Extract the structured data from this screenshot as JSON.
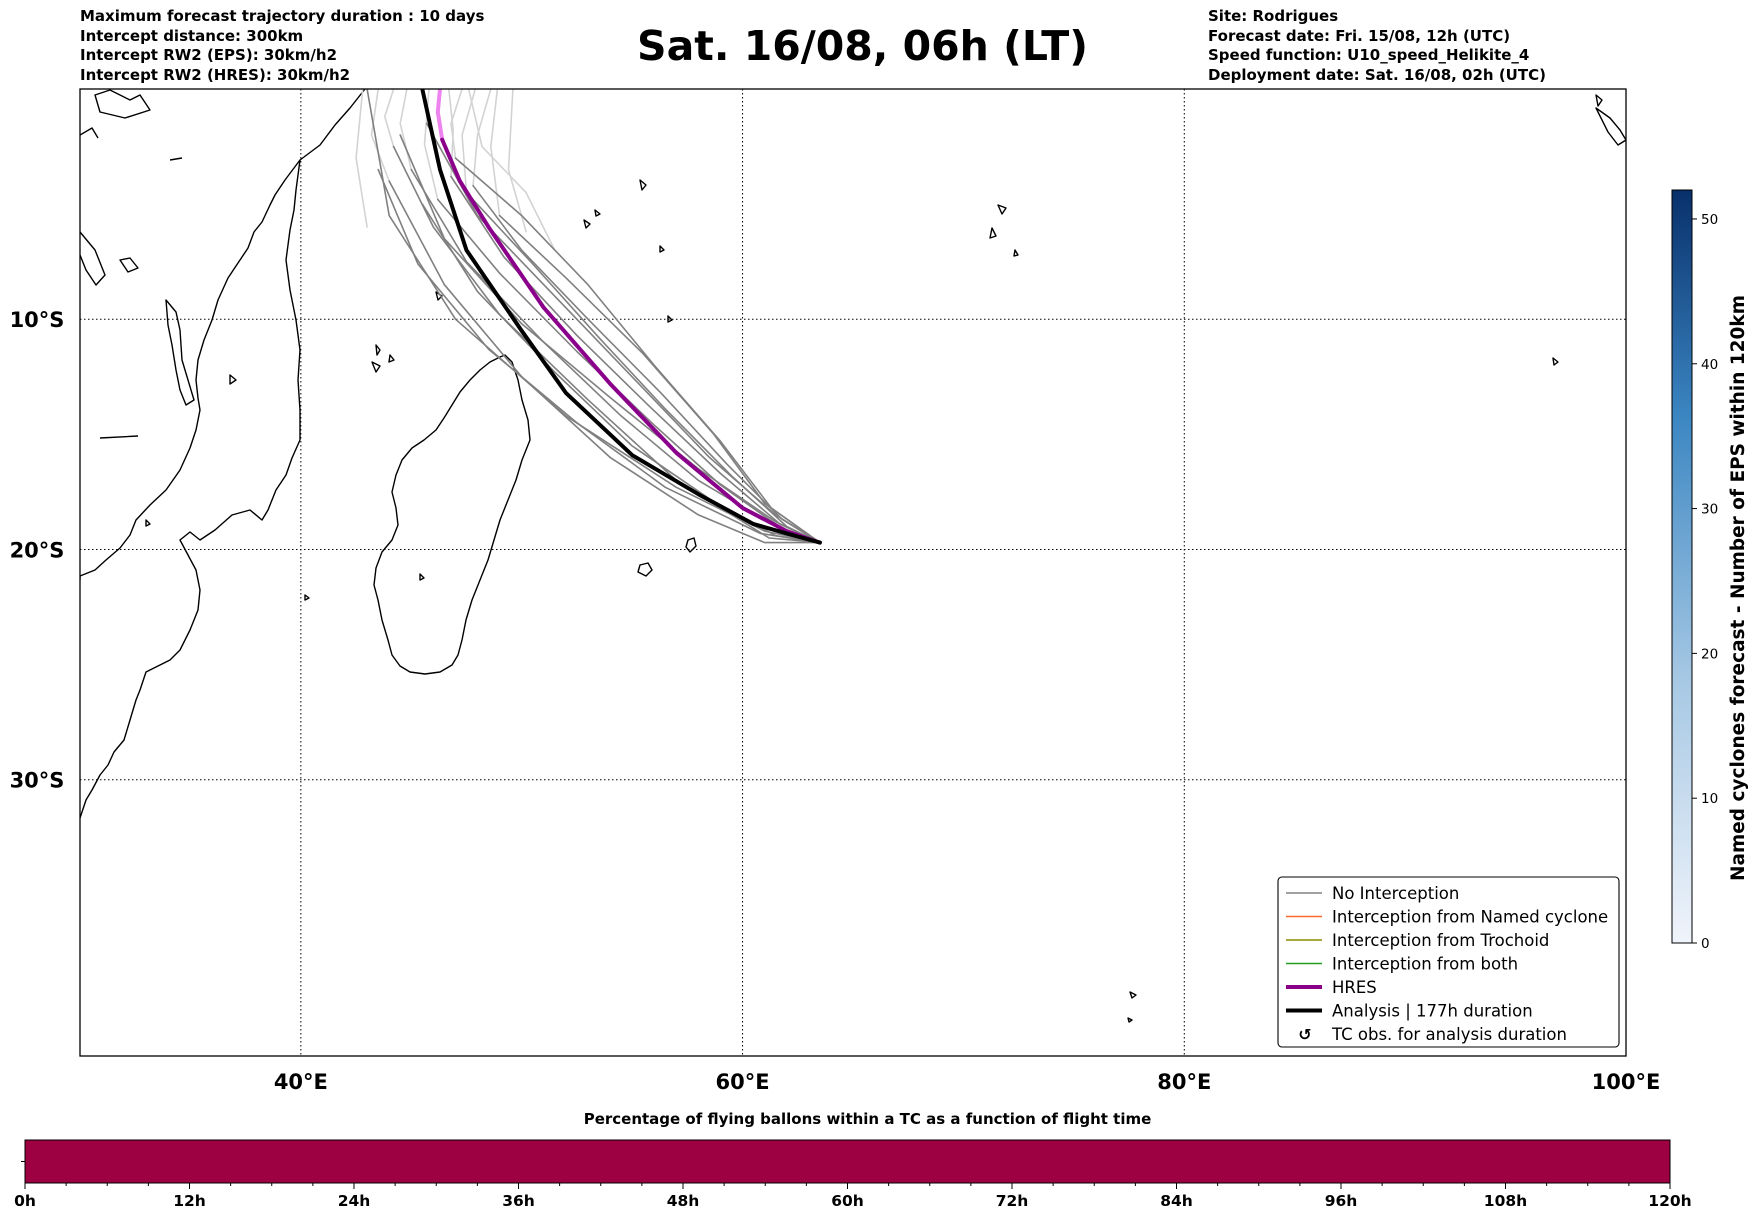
{
  "header": {
    "left_lines": [
      "Maximum forecast trajectory duration : 10 days",
      "Intercept distance: 300km",
      "Intercept RW2 (EPS):  30km/h2",
      "Intercept RW2 (HRES): 30km/h2"
    ],
    "title": "Sat. 16/08, 06h (LT)",
    "right_lines": [
      "Site: Rodrigues",
      "Forecast date: Fri. 15/08, 12h (UTC)",
      "Speed function: U10_speed_Helikite_4",
      "Deployment date: Sat. 16/08, 02h (UTC)"
    ]
  },
  "chart_data": [
    {
      "type": "line",
      "title": "Sat. 16/08, 06h (LT)",
      "xlabel": "",
      "ylabel": "",
      "xlim": [
        30,
        100
      ],
      "ylim": [
        -42,
        0
      ],
      "x_ticks": [
        {
          "value": 40,
          "label": "40°E"
        },
        {
          "value": 60,
          "label": "60°E"
        },
        {
          "value": 80,
          "label": "80°E"
        },
        {
          "value": 100,
          "label": "100°E"
        }
      ],
      "y_ticks": [
        {
          "value": -10,
          "label": "10°S"
        },
        {
          "value": -20,
          "label": "20°S"
        },
        {
          "value": -30,
          "label": "30°S"
        }
      ],
      "grid": true,
      "legend_position": "bottom-right",
      "legend": [
        {
          "label": "No Interception",
          "color": "#808080",
          "style": "thin"
        },
        {
          "label": "Interception from Named cyclone",
          "color": "#ff6a2a",
          "style": "thin"
        },
        {
          "label": "Interception from Trochoid",
          "color": "#8b8b00",
          "style": "thin"
        },
        {
          "label": "Interception from both",
          "color": "#1f9e1f",
          "style": "thin"
        },
        {
          "label": "HRES",
          "color": "#8b008b",
          "style": "thick"
        },
        {
          "label": "Analysis | 177h duration",
          "color": "#000000",
          "style": "thick"
        },
        {
          "label": "TC obs. for analysis duration",
          "color": "#000000",
          "style": "marker"
        }
      ],
      "series": [
        {
          "name": "Analysis | 177h duration",
          "color": "#000000",
          "points": [
            [
              63.5,
              -19.7
            ],
            [
              62,
              -19.3
            ],
            [
              60.5,
              -18.9
            ],
            [
              58,
              -17.6
            ],
            [
              55,
              -15.9
            ],
            [
              52,
              -13.2
            ],
            [
              50,
              -10.5
            ],
            [
              47.5,
              -7
            ],
            [
              46.3,
              -3.5
            ],
            [
              45.5,
              0
            ]
          ]
        },
        {
          "name": "HRES",
          "color": "#8b008b",
          "points": [
            [
              63.5,
              -19.7
            ],
            [
              62,
              -19.2
            ],
            [
              60,
              -18.2
            ],
            [
              57,
              -15.8
            ],
            [
              54,
              -12.8
            ],
            [
              51,
              -9.5
            ],
            [
              48.5,
              -6
            ],
            [
              47.2,
              -4
            ],
            [
              46.4,
              -2.2
            ]
          ]
        },
        {
          "name": "HRES extension",
          "color": "#ee82ee",
          "points": [
            [
              46.4,
              -2.2
            ],
            [
              46.2,
              -1
            ],
            [
              46.3,
              0
            ]
          ]
        },
        {
          "name": "EPS members (no interception)",
          "color": "#808080",
          "members": [
            [
              [
                63.5,
                -19.7
              ],
              [
                61,
                -19.2
              ],
              [
                57,
                -17.3
              ],
              [
                52,
                -14.2
              ],
              [
                47,
                -10
              ],
              [
                44,
                -5.5
              ],
              [
                43,
                0
              ]
            ],
            [
              [
                63.5,
                -19.7
              ],
              [
                61.5,
                -18.8
              ],
              [
                58,
                -16.5
              ],
              [
                54,
                -13.4
              ],
              [
                50,
                -10.2
              ],
              [
                46.5,
                -6.5
              ],
              [
                44.5,
                -2
              ]
            ],
            [
              [
                63.5,
                -19.7
              ],
              [
                61.5,
                -18.5
              ],
              [
                58.5,
                -16
              ],
              [
                55,
                -12.5
              ],
              [
                51.5,
                -9
              ],
              [
                48,
                -5.5
              ],
              [
                45.7,
                -1.5
              ]
            ],
            [
              [
                63.5,
                -19.7
              ],
              [
                61.3,
                -18.2
              ],
              [
                59,
                -15.3
              ],
              [
                56,
                -12
              ],
              [
                53,
                -8.5
              ],
              [
                50,
                -5.5
              ],
              [
                47,
                -3
              ]
            ],
            [
              [
                63.5,
                -19.7
              ],
              [
                61,
                -18
              ],
              [
                58.7,
                -15
              ],
              [
                55.5,
                -11.5
              ],
              [
                52,
                -8.2
              ],
              [
                49,
                -5.5
              ]
            ],
            [
              [
                63.5,
                -19.7
              ],
              [
                61,
                -19.7
              ],
              [
                58,
                -18.5
              ],
              [
                54,
                -16
              ],
              [
                50,
                -12.5
              ],
              [
                46.5,
                -8.5
              ],
              [
                44,
                -4
              ]
            ],
            [
              [
                63.5,
                -19.7
              ],
              [
                61.2,
                -19.5
              ],
              [
                57,
                -17
              ],
              [
                53,
                -13.5
              ],
              [
                49,
                -9.8
              ],
              [
                46,
                -6
              ],
              [
                44.2,
                -2.5
              ]
            ],
            [
              [
                63.5,
                -19.7
              ],
              [
                61.5,
                -19
              ],
              [
                58,
                -17
              ],
              [
                54.5,
                -14.2
              ],
              [
                51,
                -11
              ],
              [
                47.5,
                -7.5
              ],
              [
                45,
                -3.5
              ]
            ],
            [
              [
                63.5,
                -19.7
              ],
              [
                61.8,
                -19.1
              ],
              [
                59,
                -17.2
              ],
              [
                56,
                -14.6
              ],
              [
                52.5,
                -11.4
              ],
              [
                49,
                -8
              ],
              [
                46.2,
                -4.8
              ]
            ],
            [
              [
                63.5,
                -19.7
              ],
              [
                62,
                -19
              ],
              [
                59.5,
                -16.8
              ],
              [
                56.5,
                -13.9
              ],
              [
                53.5,
                -10.8
              ],
              [
                50.5,
                -7.6
              ],
              [
                47.5,
                -4.5
              ]
            ],
            [
              [
                63.5,
                -19.7
              ],
              [
                61.8,
                -18.7
              ],
              [
                59.3,
                -16.3
              ],
              [
                56.3,
                -13.2
              ],
              [
                53,
                -10
              ],
              [
                50,
                -7
              ],
              [
                47.8,
                -4.2
              ]
            ],
            [
              [
                63.5,
                -19.7
              ],
              [
                60.8,
                -19.3
              ],
              [
                56.5,
                -17.3
              ],
              [
                52.5,
                -14.5
              ],
              [
                48.5,
                -11.3
              ],
              [
                45.3,
                -7.6
              ],
              [
                43.5,
                -3.5
              ]
            ],
            [
              [
                63.5,
                -19.7
              ],
              [
                61.5,
                -19.4
              ],
              [
                58.5,
                -17.8
              ],
              [
                55,
                -15.5
              ],
              [
                51.5,
                -12.3
              ],
              [
                48,
                -8.8
              ],
              [
                45.5,
                -5
              ]
            ],
            [
              [
                63.5,
                -19.7
              ],
              [
                61.7,
                -18.9
              ],
              [
                59,
                -16.7
              ],
              [
                55.8,
                -13.8
              ],
              [
                52.5,
                -10.7
              ],
              [
                49.2,
                -7.3
              ],
              [
                46.8,
                -3.8
              ]
            ]
          ]
        },
        {
          "name": "EPS members beyond duration",
          "color": "#d3d3d3",
          "members": [
            [
              [
                43,
                -6
              ],
              [
                42.5,
                -3
              ],
              [
                42.8,
                0
              ]
            ],
            [
              [
                44,
                -4
              ],
              [
                43.2,
                -2
              ],
              [
                43.5,
                0
              ]
            ],
            [
              [
                44.2,
                -2.5
              ],
              [
                43.8,
                -1.2
              ],
              [
                44.2,
                0
              ]
            ],
            [
              [
                45,
                -3.5
              ],
              [
                44.5,
                -1.5
              ],
              [
                44.8,
                0
              ]
            ],
            [
              [
                46.2,
                -4.8
              ],
              [
                45.6,
                -2.4
              ],
              [
                45.8,
                0
              ]
            ],
            [
              [
                47,
                -3
              ],
              [
                46.8,
                -1.5
              ],
              [
                47.3,
                0
              ]
            ],
            [
              [
                47.5,
                -4.5
              ],
              [
                47.3,
                -2
              ],
              [
                47.9,
                0
              ]
            ],
            [
              [
                47.8,
                -4.2
              ],
              [
                48,
                -2
              ],
              [
                48.6,
                0
              ]
            ],
            [
              [
                49,
                -5.5
              ],
              [
                48.6,
                -2.5
              ],
              [
                48.9,
                0
              ]
            ],
            [
              [
                50.2,
                -6.2
              ],
              [
                49.4,
                -3.5
              ],
              [
                49.6,
                0
              ]
            ],
            [
              [
                51.5,
                -7
              ],
              [
                50.2,
                -4.5
              ],
              [
                48.2,
                -2.5
              ],
              [
                47.6,
                0
              ]
            ],
            [
              [
                46.8,
                -3.8
              ],
              [
                46.9,
                -1.8
              ],
              [
                46.7,
                0
              ]
            ]
          ]
        }
      ]
    },
    {
      "type": "heatmap",
      "title": "Named cyclones forecast - Number of EPS within 120km",
      "colorbar_ticks": [
        0,
        10,
        20,
        30,
        40,
        50
      ],
      "range": [
        0,
        52
      ],
      "color_low": "#f0f4fb",
      "color_high": "#08306b"
    },
    {
      "type": "bar",
      "title": "Percentage of flying ballons within a TC as a function of flight time",
      "x_ticks": [
        "0h",
        "12h",
        "24h",
        "36h",
        "48h",
        "60h",
        "72h",
        "84h",
        "96h",
        "108h",
        "120h"
      ],
      "xlim": [
        0,
        120
      ],
      "minor_tick_step": 3,
      "fill_color": "#9e0142",
      "fill_fraction": 1.0
    }
  ]
}
